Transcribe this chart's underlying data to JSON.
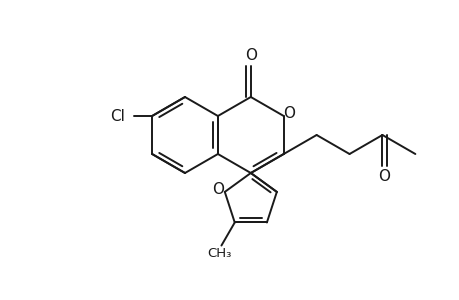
{
  "background_color": "#ffffff",
  "line_color": "#1a1a1a",
  "line_width": 1.4,
  "font_size": 9.5,
  "figsize": [
    4.6,
    3.0
  ],
  "dpi": 100,
  "xlim": [
    0,
    460
  ],
  "ylim": [
    0,
    300
  ]
}
